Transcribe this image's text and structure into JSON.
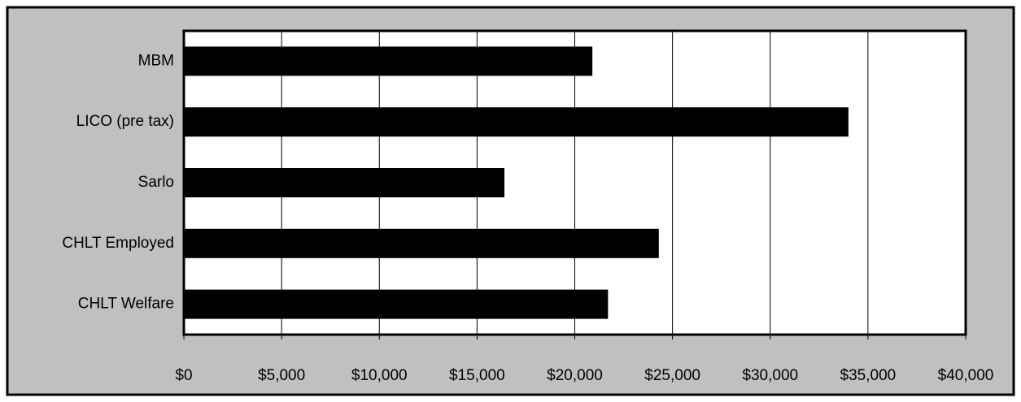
{
  "chart_data": {
    "type": "barh",
    "categories": [
      "MBM",
      "LICO (pre tax)",
      "Sarlo",
      "CHLT Employed",
      "CHLT Welfare"
    ],
    "values": [
      20900,
      34000,
      16400,
      24300,
      21700
    ],
    "color": "#000000",
    "xlim": [
      0,
      40000
    ],
    "xticks": [
      {
        "value": 0,
        "label": "$0"
      },
      {
        "value": 5000,
        "label": "$5,000"
      },
      {
        "value": 10000,
        "label": "$10,000"
      },
      {
        "value": 15000,
        "label": "$15,000"
      },
      {
        "value": 20000,
        "label": "$20,000"
      },
      {
        "value": 25000,
        "label": "$25,000"
      },
      {
        "value": 30000,
        "label": "$30,000"
      },
      {
        "value": 35000,
        "label": "$35,000"
      },
      {
        "value": 40000,
        "label": "$40,000"
      }
    ],
    "grid": true
  }
}
